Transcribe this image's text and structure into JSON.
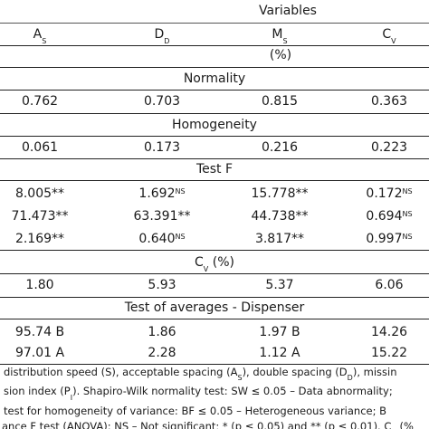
{
  "header": {
    "variables": "Variables",
    "col_as": "A",
    "col_as_sub": "S",
    "col_dd": "D",
    "col_dd_sub": "D",
    "col_ms": "M",
    "col_ms_sub": "S",
    "col_cv": "C",
    "col_cv_sub": "V",
    "unit": "(%)"
  },
  "sections": {
    "normality": "Normality",
    "homogeneity": "Homogeneity",
    "test_f": "Test F",
    "cv_label": "C",
    "cv_sub": "V",
    "cv_unit": " (%)",
    "averages": "Test of averages - Dispenser"
  },
  "normality_row": [
    "0.762",
    "0.703",
    "0.815",
    "0.363"
  ],
  "homogeneity_row": [
    "0.061",
    "0.173",
    "0.216",
    "0.223"
  ],
  "testf_rows": [
    [
      {
        "v": "8.005**",
        "s": ""
      },
      {
        "v": "1.692",
        "s": "NS"
      },
      {
        "v": "15.778**",
        "s": ""
      },
      {
        "v": "0.172",
        "s": "NS"
      }
    ],
    [
      {
        "v": "71.473**",
        "s": ""
      },
      {
        "v": "63.391**",
        "s": ""
      },
      {
        "v": "44.738**",
        "s": ""
      },
      {
        "v": "0.694",
        "s": "NS"
      }
    ],
    [
      {
        "v": "2.169**",
        "s": ""
      },
      {
        "v": "0.640",
        "s": "NS"
      },
      {
        "v": "3.817**",
        "s": ""
      },
      {
        "v": "0.997",
        "s": "NS"
      }
    ]
  ],
  "cv_row": [
    "1.80",
    "5.93",
    "5.37",
    "6.06"
  ],
  "averages_rows": [
    [
      "95.74 B",
      "1.86",
      "1.97 B",
      "14.26"
    ],
    [
      "97.01 A",
      "2.28",
      "1.12 A",
      "15.22"
    ]
  ],
  "notes": {
    "line1": "distribution speed (S), acceptable spacing (A",
    "line1_sub1": "S",
    "line1_mid": "), double spacing (D",
    "line1_sub2": "D",
    "line1_end": "), missin",
    "line2": "sion index (P",
    "line2_sub": "I",
    "line2_end": "). Shapiro-Wilk normality test: SW ≤ 0.05 – Data abnormality;",
    "line3": "test for homogeneity of variance: BF ≤ 0.05 – Heterogeneous variance; B",
    "line4": "ance F test (ANOVA): NS – Not significant; * (p ≤ 0.05) and ** (p ≤ 0.01). C",
    "line4_sub": "V",
    "line4_end": " (%"
  }
}
